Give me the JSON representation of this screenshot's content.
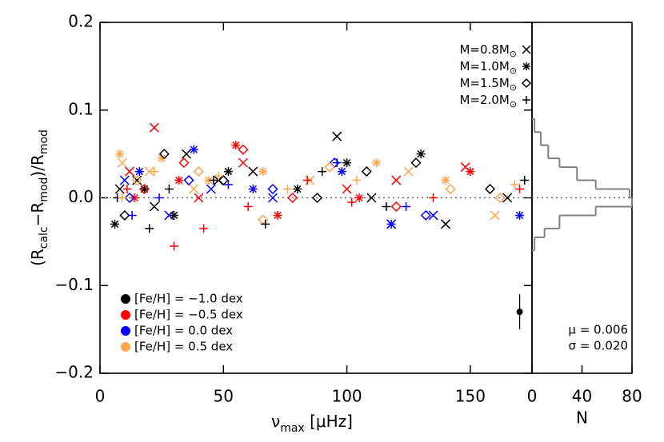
{
  "chart_data": [
    {
      "type": "scatter",
      "xlabel": [
        "ν",
        "max",
        " [μHz]"
      ],
      "ylabel": [
        "(R",
        "calc",
        "−R",
        "mod",
        ")/R",
        "mod"
      ],
      "xlim": [
        0,
        175
      ],
      "ylim": [
        -0.2,
        0.2
      ],
      "xticks": [
        0,
        50,
        100,
        150
      ],
      "yticks": [
        {
          "value": -0.2,
          "label": "−0.2"
        },
        {
          "value": -0.1,
          "label": "−0.1"
        },
        {
          "value": 0,
          "label": "0.0"
        },
        0.1,
        0.2
      ],
      "zero_line": true,
      "mass_legend": [
        {
          "label": "M=0.8M",
          "sub": "⊙",
          "marker": "x"
        },
        {
          "label": "M=1.0M",
          "sub": "⊙",
          "marker": "asterisk"
        },
        {
          "label": "M=1.5M",
          "sub": "⊙",
          "marker": "diamond"
        },
        {
          "label": "M=2.0M",
          "sub": "⊙",
          "marker": "plus"
        }
      ],
      "feh_legend": [
        {
          "label": "[Fe/H] = −1.0 dex",
          "color": "#000000"
        },
        {
          "label": "[Fe/H] = −0.5 dex",
          "color": "#ff0000"
        },
        {
          "label": "[Fe/H] = 0.0 dex",
          "color": "#0000ff"
        },
        {
          "label": "[Fe/H] = 0.5 dex",
          "color": "#ffa64d"
        }
      ],
      "series": [
        {
          "marker": "x",
          "color": "#000000",
          "x": [
            8,
            15,
            22,
            35,
            48,
            62,
            96,
            110,
            140,
            165
          ],
          "values": [
            0.01,
            0.02,
            -0.01,
            0.05,
            0.02,
            0.03,
            0.07,
            0.0,
            -0.03,
            0.0
          ]
        },
        {
          "marker": "x",
          "color": "#ff0000",
          "x": [
            12,
            22,
            40,
            58,
            100,
            120,
            148
          ],
          "values": [
            0.03,
            0.08,
            0.0,
            0.04,
            0.01,
            0.02,
            0.035
          ]
        },
        {
          "marker": "x",
          "color": "#0000ff",
          "x": [
            10,
            28,
            45,
            70,
            118,
            135
          ],
          "values": [
            0.02,
            -0.02,
            0.01,
            0.0,
            -0.03,
            -0.02
          ]
        },
        {
          "marker": "x",
          "color": "#ffa64d",
          "x": [
            9,
            20,
            38,
            85,
            125,
            160
          ],
          "values": [
            0.04,
            0.03,
            0.01,
            0.02,
            0.03,
            -0.02
          ]
        },
        {
          "marker": "asterisk",
          "color": "#000000",
          "x": [
            6,
            18,
            30,
            52,
            80,
            100,
            130
          ],
          "values": [
            -0.03,
            0.01,
            -0.02,
            0.03,
            0.01,
            0.04,
            0.05
          ]
        },
        {
          "marker": "asterisk",
          "color": "#ff0000",
          "x": [
            14,
            32,
            55,
            72,
            105,
            150
          ],
          "values": [
            0.0,
            0.02,
            0.06,
            -0.02,
            0.0,
            0.03
          ]
        },
        {
          "marker": "asterisk",
          "color": "#0000ff",
          "x": [
            16,
            38,
            62,
            98,
            118,
            170
          ],
          "values": [
            0.03,
            0.055,
            0.01,
            0.03,
            -0.03,
            -0.02
          ]
        },
        {
          "marker": "asterisk",
          "color": "#ffa64d",
          "x": [
            8,
            25,
            44,
            66,
            112,
            140
          ],
          "values": [
            0.05,
            0.045,
            0.02,
            0.03,
            0.04,
            0.02
          ]
        },
        {
          "marker": "diamond",
          "color": "#000000",
          "x": [
            10,
            26,
            50,
            88,
            108,
            128,
            158
          ],
          "values": [
            -0.02,
            0.05,
            0.02,
            0.0,
            0.03,
            0.04,
            0.01
          ]
        },
        {
          "marker": "diamond",
          "color": "#ff0000",
          "x": [
            18,
            34,
            58,
            78,
            120
          ],
          "values": [
            0.01,
            0.04,
            0.055,
            0.0,
            -0.01
          ]
        },
        {
          "marker": "diamond",
          "color": "#0000ff",
          "x": [
            12,
            36,
            70,
            95,
            132
          ],
          "values": [
            0.0,
            0.02,
            0.01,
            0.04,
            -0.02
          ]
        },
        {
          "marker": "diamond",
          "color": "#ffa64d",
          "x": [
            15,
            40,
            66,
            93,
            142,
            162
          ],
          "values": [
            0.02,
            0.03,
            -0.025,
            0.035,
            0.01,
            0.0
          ]
        },
        {
          "marker": "plus",
          "color": "#000000",
          "x": [
            7,
            20,
            28,
            46,
            67,
            90,
            116,
            172
          ],
          "values": [
            0.0,
            -0.035,
            0.01,
            0.02,
            -0.03,
            0.03,
            -0.01,
            0.02
          ]
        },
        {
          "marker": "plus",
          "color": "#ff0000",
          "x": [
            11,
            30,
            42,
            60,
            84,
            102,
            135,
            170
          ],
          "values": [
            0.01,
            -0.055,
            -0.035,
            -0.01,
            0.02,
            -0.005,
            0.0,
            0.01
          ]
        },
        {
          "marker": "plus",
          "color": "#0000ff",
          "x": [
            13,
            24,
            52,
            96,
            124
          ],
          "values": [
            -0.02,
            0.0,
            0.015,
            0.04,
            -0.01
          ]
        },
        {
          "marker": "plus",
          "color": "#ffa64d",
          "x": [
            9,
            22,
            48,
            76,
            104,
            168
          ],
          "values": [
            0.0,
            0.03,
            0.025,
            0.01,
            0.02,
            0.015
          ]
        }
      ],
      "error_point": {
        "x": 170,
        "value": -0.13,
        "error": 0.02
      }
    },
    {
      "type": "histogram",
      "orientation": "horizontal",
      "xlabel": "N",
      "xlim": [
        0,
        80
      ],
      "xticks": [
        0,
        40,
        80
      ],
      "bins": [
        -0.06,
        -0.045,
        -0.035,
        -0.02,
        -0.01,
        0.0,
        0.01,
        0.02,
        0.035,
        0.045,
        0.06,
        0.075,
        0.09
      ],
      "counts": [
        2,
        10,
        22,
        51,
        80,
        78,
        51,
        36,
        22,
        13,
        7,
        2
      ],
      "color": "#808080",
      "annotations": [
        "μ = 0.006",
        "σ = 0.020"
      ]
    }
  ]
}
